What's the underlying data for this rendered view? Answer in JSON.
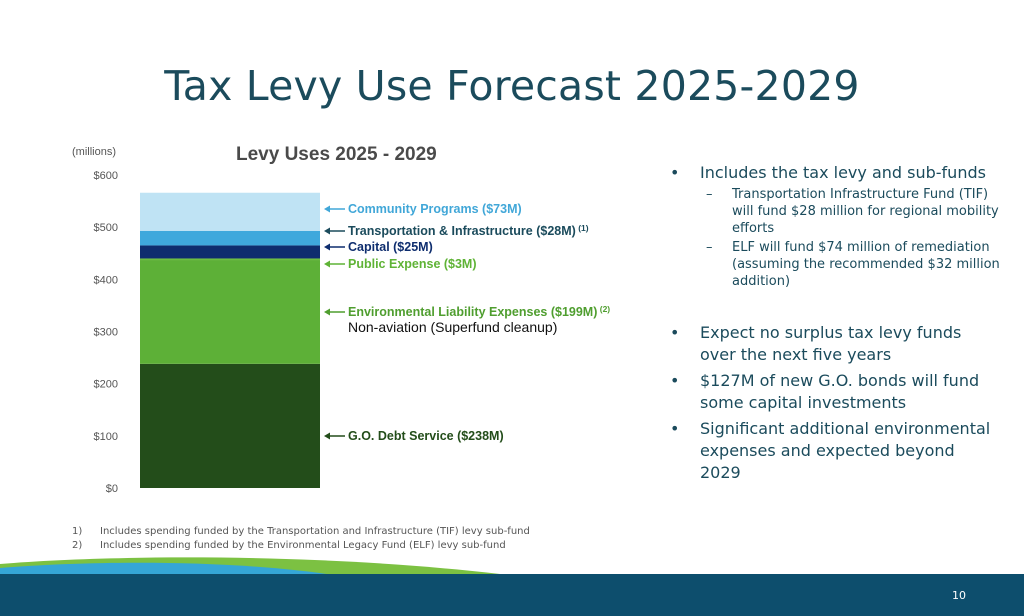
{
  "slide": {
    "title": "Tax Levy Use Forecast 2025-2029",
    "page_number": "10",
    "colors": {
      "title": "#1b4b5c",
      "band": "#0d4e6d",
      "swoosh_green": "#7cc142",
      "swoosh_blue": "#35a6d6"
    }
  },
  "chart_data": {
    "type": "bar",
    "title": "Levy Uses 2025 - 2029",
    "unit_label": "(millions)",
    "ylim": [
      0,
      600
    ],
    "yticks": [
      0,
      100,
      200,
      300,
      400,
      500,
      600
    ],
    "ytick_labels": [
      "$0",
      "$100",
      "$200",
      "$300",
      "$400",
      "$500",
      "$600"
    ],
    "categories": [
      "2025-2029"
    ],
    "series": [
      {
        "name": "G.O. Debt Service",
        "values": [
          238
        ],
        "color": "#234d1a",
        "label": "G.O. Debt Service ($238M)",
        "label_color": "#234d1a",
        "sup": "",
        "note": ""
      },
      {
        "name": "Environmental Liability Expenses",
        "values": [
          199
        ],
        "color": "#5db037",
        "label": "Environmental Liability Expenses ($199M)",
        "label_color": "#4f9e2f",
        "sup": "(2)",
        "note": "Non-aviation (Superfund cleanup)"
      },
      {
        "name": "Public Expense",
        "values": [
          3
        ],
        "color": "#6cbf3f",
        "label": "Public Expense ($3M)",
        "label_color": "#5fb336",
        "sup": "",
        "note": ""
      },
      {
        "name": "Capital",
        "values": [
          25
        ],
        "color": "#0e2d6e",
        "label": "Capital ($25M)",
        "label_color": "#0e2d6e",
        "sup": "",
        "note": ""
      },
      {
        "name": "Transportation & Infrastructure",
        "values": [
          28
        ],
        "color": "#3fa8dc",
        "label": "Transportation  & Infrastructure ($28M)",
        "label_color": "#1b4b5c",
        "sup": "(1)",
        "note": ""
      },
      {
        "name": "Community Programs",
        "values": [
          73
        ],
        "color": "#bfe3f4",
        "label": "Community Programs ($73M)",
        "label_color": "#41a7d8",
        "sup": "",
        "note": ""
      }
    ]
  },
  "bullets": [
    {
      "text": "Includes the tax levy and sub-funds",
      "subs": [
        "Transportation Infrastructure Fund (TIF) will fund $28 million for regional mobility efforts",
        "ELF will fund $74 million of remediation (assuming the recommended $32 million addition)"
      ]
    },
    {
      "text": "Expect no surplus tax levy funds over the next five years",
      "subs": []
    },
    {
      "text": "$127M of new G.O. bonds will fund some capital investments",
      "subs": []
    },
    {
      "text": "Significant additional environmental expenses and expected beyond 2029",
      "subs": []
    }
  ],
  "footnotes": [
    {
      "num": "1)",
      "text": "Includes spending funded by the Transportation and Infrastructure (TIF) levy sub-fund"
    },
    {
      "num": "2)",
      "text": "Includes spending funded by the Environmental Legacy Fund (ELF) levy sub-fund"
    }
  ]
}
